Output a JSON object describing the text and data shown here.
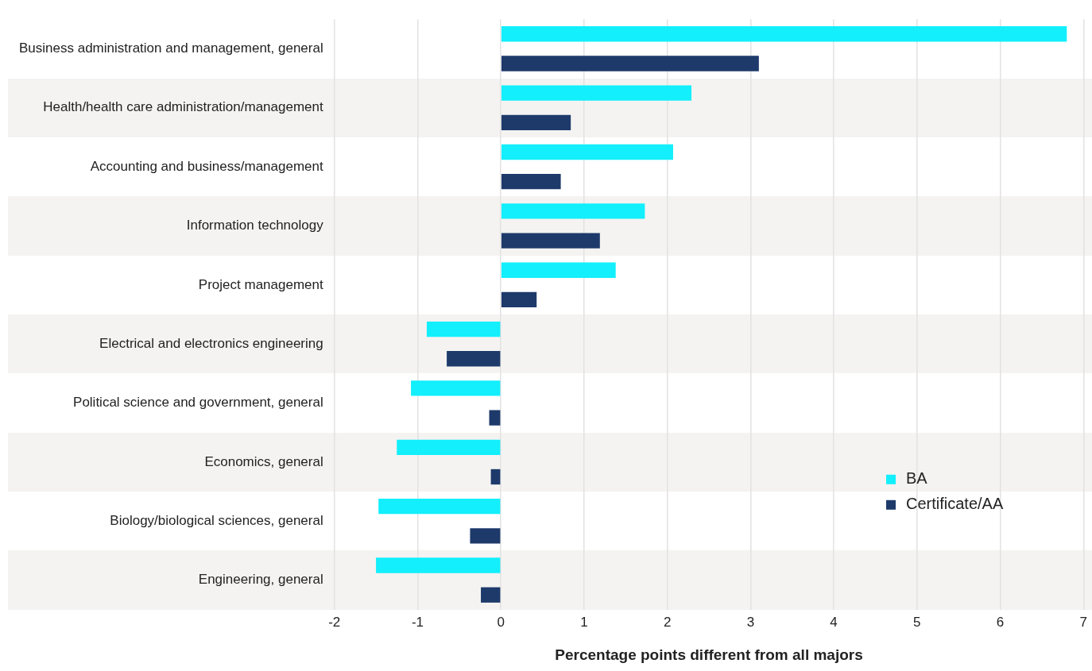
{
  "chart_data": {
    "type": "bar",
    "orientation": "horizontal",
    "xlabel": "Percentage points different from all majors",
    "categories": [
      "Business administration and management, general",
      "Health/health care administration/management",
      "Accounting and business/management",
      "Information technology",
      "Project management",
      "Electrical and electronics engineering",
      "Political science and government, general",
      "Economics, general",
      "Biology/biological sciences, general",
      "Engineering, general"
    ],
    "series": [
      {
        "name": "BA",
        "color": "#13effc",
        "values": [
          6.8,
          2.29,
          2.07,
          1.73,
          1.38,
          -0.89,
          -1.08,
          -1.25,
          -1.47,
          -1.5
        ]
      },
      {
        "name": "Certificate/AA",
        "color": "#1d3a6b",
        "values": [
          3.1,
          0.84,
          0.72,
          1.19,
          0.43,
          -0.65,
          -0.14,
          -0.12,
          -0.37,
          -0.24
        ]
      }
    ],
    "xlim": [
      -2,
      7
    ],
    "xticks": [
      -2,
      -1,
      0,
      1,
      2,
      3,
      4,
      5,
      6,
      7
    ],
    "grid": "x",
    "legend": "bottom right"
  }
}
